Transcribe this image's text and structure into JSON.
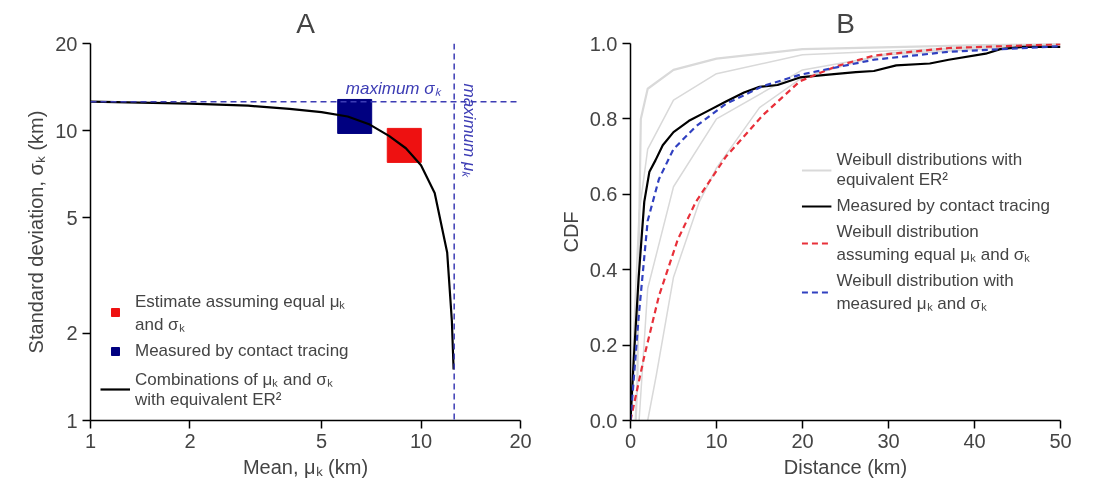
{
  "chart_data": [
    {
      "type": "line",
      "title": "A",
      "xlabel": "Mean, μₖ (km)",
      "ylabel": "Standard deviation, σₖ (km)",
      "log": "xy",
      "xlim": [
        1,
        20
      ],
      "ylim": [
        1,
        20
      ],
      "xticks": [
        1,
        2,
        5,
        10,
        20
      ],
      "yticks": [
        1,
        2,
        5,
        10,
        20
      ],
      "grid": false,
      "legend": "bottom left",
      "ref_lines": [
        {
          "axis": "y",
          "value": 12.6,
          "label": "maximum σₖ",
          "color": "#3c3cb4",
          "line_style": "dashed"
        },
        {
          "axis": "x",
          "value": 12.6,
          "label": "maximum μₖ",
          "color": "#3c3cb4",
          "line_style": "dashed"
        }
      ],
      "series": [
        {
          "type": "scatter",
          "marker": "square",
          "name": "Estimate assuming equal μₖ and σₖ",
          "color": "#ee1111",
          "x": [
            8.9
          ],
          "values": [
            8.9
          ]
        },
        {
          "type": "scatter",
          "marker": "square",
          "name": "Measured by contact tracing",
          "color": "#000080",
          "x": [
            6.3
          ],
          "values": [
            11.2
          ]
        },
        {
          "type": "line",
          "line_style": "solid",
          "name": "Combinations of μₖ and σₖ with equivalent ER²",
          "color": "#000000",
          "x": [
            1,
            2,
            3,
            4,
            5,
            6,
            7,
            8,
            9,
            10,
            11,
            12,
            12.4,
            12.55
          ],
          "values": [
            12.6,
            12.4,
            12.2,
            11.9,
            11.6,
            11.2,
            10.5,
            9.6,
            8.7,
            7.6,
            6.1,
            3.8,
            2.2,
            1.5
          ]
        }
      ]
    },
    {
      "type": "line",
      "title": "B",
      "xlabel": "Distance (km)",
      "ylabel": "CDF",
      "xlim": [
        0,
        50
      ],
      "ylim": [
        0,
        1
      ],
      "xticks": [
        0,
        10,
        20,
        30,
        40,
        50
      ],
      "yticks": [
        {
          "value": 0,
          "label": "0.0"
        },
        {
          "value": 0.2,
          "label": "0.2"
        },
        {
          "value": 0.4,
          "label": "0.4"
        },
        {
          "value": 0.6,
          "label": "0.6"
        },
        {
          "value": 0.8,
          "label": "0.8"
        },
        {
          "value": 1,
          "label": "1.0"
        }
      ],
      "grid": false,
      "legend": "right",
      "series": [
        {
          "line_style": "solid",
          "name": "Weibull distributions with equivalent ER²",
          "color": "#d9d9d9",
          "x": [
            0.6,
            0.8,
            1.0,
            1.2,
            2,
            5,
            10,
            20,
            50
          ],
          "values": [
            0,
            0.1,
            0.5,
            0.8,
            0.88,
            0.93,
            0.96,
            0.985,
            1.0
          ]
        },
        {
          "line_style": "solid",
          "color": "#d9d9d9",
          "x": [
            0,
            0.5,
            1,
            2,
            5,
            10,
            20,
            50
          ],
          "values": [
            0,
            0.3,
            0.55,
            0.72,
            0.85,
            0.92,
            0.97,
            1.0
          ]
        },
        {
          "line_style": "solid",
          "color": "#d9d9d9",
          "x": [
            1,
            2,
            5,
            10,
            20,
            30,
            50
          ],
          "values": [
            0,
            0.35,
            0.62,
            0.8,
            0.93,
            0.97,
            0.998
          ]
        },
        {
          "line_style": "solid",
          "color": "#d9d9d9",
          "x": [
            2,
            3,
            5,
            8,
            10,
            15,
            20,
            30,
            50
          ],
          "values": [
            0,
            0.12,
            0.38,
            0.58,
            0.67,
            0.83,
            0.91,
            0.975,
            1.0
          ]
        },
        {
          "line_style": "solid",
          "name": "Measured by contact tracing",
          "color": "#000000",
          "x": [
            0,
            0.4,
            0.95,
            1.6,
            2.2,
            2.9,
            3.75,
            5.0,
            6.8,
            8.9,
            11.1,
            13.2,
            15,
            17.1,
            19.7,
            22.7,
            26.2,
            28.3,
            30.9,
            34.8,
            37,
            41.3,
            43,
            45.6,
            50
          ],
          "values": [
            0,
            0.17,
            0.38,
            0.58,
            0.66,
            0.69,
            0.73,
            0.765,
            0.795,
            0.82,
            0.846,
            0.87,
            0.885,
            0.89,
            0.91,
            0.917,
            0.924,
            0.927,
            0.942,
            0.947,
            0.957,
            0.973,
            0.985,
            0.991,
            0.991
          ]
        },
        {
          "line_style": "dashed",
          "name": "Weibull distribution assuming equal μₖ and σₖ",
          "color": "#e8303a",
          "x": [
            0,
            1.6,
            3.3,
            5.5,
            7.6,
            11.1,
            15.4,
            19.7,
            24,
            28.3,
            37,
            50
          ],
          "values": [
            0,
            0.17,
            0.33,
            0.48,
            0.58,
            0.7,
            0.81,
            0.9,
            0.94,
            0.968,
            0.988,
            0.998
          ]
        },
        {
          "line_style": "dashed",
          "name": "Weibull distribution with measured μₖ and σₖ",
          "color": "#3040c0",
          "x": [
            0,
            0.95,
            2,
            3.3,
            5,
            7.6,
            11.1,
            15.4,
            19.7,
            28.3,
            37,
            50
          ],
          "values": [
            0,
            0.275,
            0.53,
            0.64,
            0.72,
            0.78,
            0.84,
            0.887,
            0.917,
            0.957,
            0.978,
            0.993
          ]
        }
      ]
    }
  ]
}
